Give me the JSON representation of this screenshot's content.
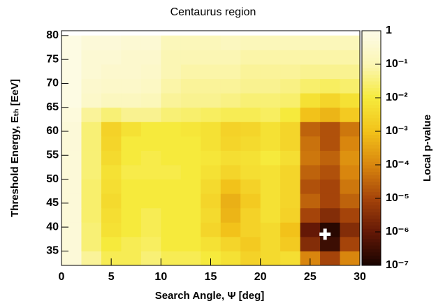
{
  "chart_data": {
    "type": "heatmap",
    "title": "Centaurus region",
    "x_label": "Search Angle, Ψ  [deg]",
    "y_label": "Threshold Energy, Eₜₕ  [EeV]",
    "z_label": "Local p-value",
    "xlim": [
      0,
      30
    ],
    "xticks": [
      0,
      5,
      10,
      15,
      20,
      25,
      30
    ],
    "ylim": [
      32,
      81
    ],
    "yticks": [
      35,
      40,
      45,
      50,
      55,
      60,
      65,
      70,
      75,
      80
    ],
    "zlim": [
      1e-07,
      1
    ],
    "z_log": true,
    "zticks": [
      1,
      {
        "value": 0.1,
        "label": "10⁻¹"
      },
      {
        "value": 0.01,
        "label": "10⁻²"
      },
      {
        "value": 0.001,
        "label": "10⁻³"
      },
      {
        "value": 0.0001,
        "label": "10⁻⁴"
      },
      {
        "value": 1e-05,
        "label": "10⁻⁵"
      },
      {
        "value": 1e-06,
        "label": "10⁻⁶"
      },
      {
        "value": 1e-07,
        "label": "10⁻⁷"
      }
    ],
    "colorscale": [
      "#fdfbe8",
      "#fbf6b4",
      "#f6ea3c",
      "#f2c21a",
      "#d9860e",
      "#a5440a",
      "#641806",
      "#180400"
    ],
    "x_bins": [
      0,
      2,
      4,
      6,
      8,
      10,
      12,
      14,
      16,
      18,
      20,
      22,
      24,
      26,
      28,
      30
    ],
    "y_bins": [
      32,
      35,
      38,
      41,
      44,
      47,
      50,
      53,
      56,
      59,
      62,
      65,
      68,
      71,
      74,
      77,
      80
    ],
    "z": [
      [
        0.5,
        0.06,
        0.016,
        0.016,
        0.03,
        0.016,
        0.016,
        0.01,
        0.006,
        0.0025,
        0.004,
        0.005,
        0.0001,
        1e-05,
        0.0001
      ],
      [
        0.5,
        0.03,
        0.01,
        0.016,
        0.02,
        0.01,
        0.01,
        0.006,
        0.003,
        0.0016,
        0.004,
        0.0016,
        3e-06,
        3e-07,
        1e-05
      ],
      [
        0.5,
        0.03,
        0.006,
        0.01,
        0.016,
        0.01,
        0.01,
        0.003,
        0.001,
        0.0025,
        0.004,
        0.001,
        1e-06,
        1.6e-07,
        3e-06
      ],
      [
        0.5,
        0.025,
        0.005,
        0.01,
        0.016,
        0.01,
        0.01,
        0.004,
        0.0006,
        0.0025,
        0.006,
        0.0025,
        1e-05,
        3e-06,
        1e-05
      ],
      [
        0.5,
        0.025,
        0.004,
        0.01,
        0.01,
        0.01,
        0.01,
        0.003,
        0.0005,
        0.0016,
        0.006,
        0.003,
        3e-05,
        1e-05,
        3e-05
      ],
      [
        0.5,
        0.025,
        0.005,
        0.01,
        0.01,
        0.01,
        0.01,
        0.004,
        0.001,
        0.0025,
        0.006,
        0.003,
        1.6e-05,
        1e-05,
        6e-05
      ],
      [
        0.5,
        0.03,
        0.006,
        0.013,
        0.013,
        0.013,
        0.01,
        0.006,
        0.003,
        0.005,
        0.006,
        0.003,
        3e-05,
        1.6e-05,
        0.0001
      ],
      [
        0.5,
        0.03,
        0.004,
        0.01,
        0.013,
        0.01,
        0.01,
        0.008,
        0.005,
        0.006,
        0.01,
        0.005,
        6e-05,
        3e-05,
        0.00016
      ],
      [
        0.5,
        0.03,
        0.003,
        0.01,
        0.01,
        0.01,
        0.01,
        0.006,
        0.003,
        0.004,
        0.006,
        0.003,
        5e-05,
        1.6e-05,
        0.0001
      ],
      [
        0.5,
        0.03,
        0.0025,
        0.006,
        0.01,
        0.01,
        0.008,
        0.006,
        0.0025,
        0.003,
        0.006,
        0.003,
        3e-05,
        1.6e-05,
        6e-05
      ],
      [
        0.6,
        0.06,
        0.03,
        0.05,
        0.05,
        0.03,
        0.025,
        0.02,
        0.016,
        0.016,
        0.02,
        0.01,
        0.001,
        0.0006,
        0.0016
      ],
      [
        0.8,
        0.25,
        0.16,
        0.16,
        0.13,
        0.06,
        0.05,
        0.05,
        0.04,
        0.03,
        0.03,
        0.025,
        0.006,
        0.003,
        0.006
      ],
      [
        0.8,
        0.3,
        0.25,
        0.25,
        0.2,
        0.08,
        0.06,
        0.06,
        0.06,
        0.05,
        0.05,
        0.04,
        0.025,
        0.02,
        0.025
      ],
      [
        0.8,
        0.4,
        0.3,
        0.3,
        0.25,
        0.1,
        0.08,
        0.08,
        0.08,
        0.06,
        0.06,
        0.06,
        0.05,
        0.05,
        0.05
      ],
      [
        0.8,
        0.4,
        0.4,
        0.3,
        0.3,
        0.1,
        0.1,
        0.1,
        0.1,
        0.08,
        0.08,
        0.08,
        0.08,
        0.08,
        0.08
      ],
      [
        0.8,
        0.5,
        0.5,
        0.4,
        0.4,
        0.13,
        0.13,
        0.13,
        0.16,
        0.13,
        0.13,
        0.13,
        0.13,
        0.13,
        0.13
      ]
    ],
    "marker": {
      "x": 26.5,
      "y": 38.5
    }
  }
}
